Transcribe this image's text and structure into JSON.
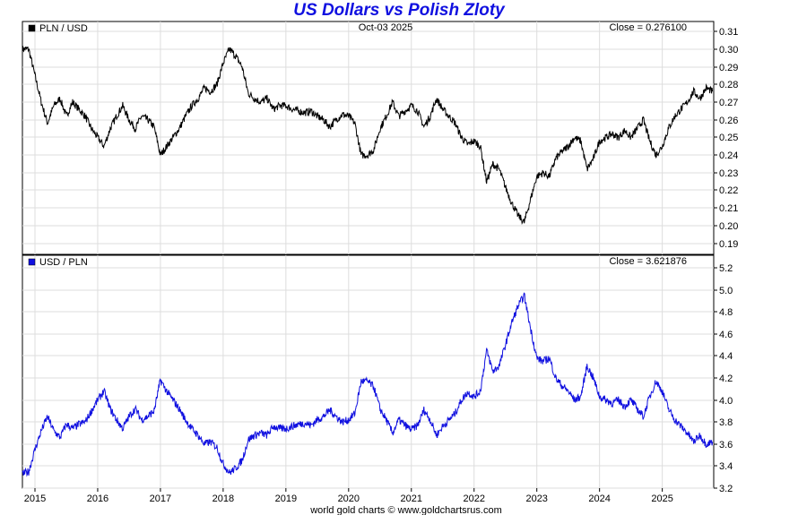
{
  "chart_data": {
    "type": "line",
    "title": "US Dollars vs Polish Zloty",
    "date_label": "Oct-03  2025",
    "footer": "world gold charts © www.goldchartsrus.com",
    "x_ticks": [
      "2015",
      "2016",
      "2017",
      "2018",
      "2019",
      "2020",
      "2021",
      "2022",
      "2023",
      "2024",
      "2025"
    ],
    "x_range": [
      2014.8,
      2025.82
    ],
    "grid": true,
    "panels": [
      {
        "name": "PLN / USD",
        "close_label": "Close = 0.276100",
        "color": "#000000",
        "ylim": [
          0.185,
          0.315
        ],
        "y_ticks": [
          "0.31",
          "0.30",
          "0.29",
          "0.28",
          "0.27",
          "0.26",
          "0.25",
          "0.24",
          "0.23",
          "0.22",
          "0.21",
          "0.20",
          "0.19"
        ],
        "points": [
          [
            2014.8,
            0.3
          ],
          [
            2014.9,
            0.3
          ],
          [
            2015.0,
            0.285
          ],
          [
            2015.1,
            0.27
          ],
          [
            2015.2,
            0.258
          ],
          [
            2015.3,
            0.268
          ],
          [
            2015.4,
            0.272
          ],
          [
            2015.5,
            0.262
          ],
          [
            2015.6,
            0.27
          ],
          [
            2015.7,
            0.266
          ],
          [
            2015.8,
            0.262
          ],
          [
            2015.9,
            0.255
          ],
          [
            2016.0,
            0.25
          ],
          [
            2016.1,
            0.245
          ],
          [
            2016.2,
            0.255
          ],
          [
            2016.3,
            0.262
          ],
          [
            2016.4,
            0.268
          ],
          [
            2016.5,
            0.26
          ],
          [
            2016.6,
            0.255
          ],
          [
            2016.7,
            0.262
          ],
          [
            2016.8,
            0.26
          ],
          [
            2016.9,
            0.256
          ],
          [
            2017.0,
            0.24
          ],
          [
            2017.1,
            0.245
          ],
          [
            2017.2,
            0.25
          ],
          [
            2017.3,
            0.255
          ],
          [
            2017.4,
            0.262
          ],
          [
            2017.5,
            0.268
          ],
          [
            2017.6,
            0.272
          ],
          [
            2017.7,
            0.278
          ],
          [
            2017.8,
            0.276
          ],
          [
            2017.9,
            0.28
          ],
          [
            2018.0,
            0.292
          ],
          [
            2018.1,
            0.3
          ],
          [
            2018.2,
            0.296
          ],
          [
            2018.3,
            0.29
          ],
          [
            2018.4,
            0.275
          ],
          [
            2018.5,
            0.272
          ],
          [
            2018.6,
            0.27
          ],
          [
            2018.7,
            0.272
          ],
          [
            2018.8,
            0.266
          ],
          [
            2018.9,
            0.268
          ],
          [
            2019.0,
            0.268
          ],
          [
            2019.1,
            0.266
          ],
          [
            2019.2,
            0.265
          ],
          [
            2019.3,
            0.264
          ],
          [
            2019.4,
            0.265
          ],
          [
            2019.5,
            0.262
          ],
          [
            2019.6,
            0.26
          ],
          [
            2019.7,
            0.256
          ],
          [
            2019.8,
            0.26
          ],
          [
            2019.9,
            0.263
          ],
          [
            2020.0,
            0.262
          ],
          [
            2020.1,
            0.258
          ],
          [
            2020.2,
            0.24
          ],
          [
            2020.3,
            0.24
          ],
          [
            2020.4,
            0.243
          ],
          [
            2020.5,
            0.255
          ],
          [
            2020.6,
            0.262
          ],
          [
            2020.7,
            0.27
          ],
          [
            2020.8,
            0.262
          ],
          [
            2020.9,
            0.265
          ],
          [
            2021.0,
            0.268
          ],
          [
            2021.1,
            0.265
          ],
          [
            2021.2,
            0.256
          ],
          [
            2021.3,
            0.262
          ],
          [
            2021.4,
            0.272
          ],
          [
            2021.5,
            0.266
          ],
          [
            2021.6,
            0.262
          ],
          [
            2021.7,
            0.258
          ],
          [
            2021.8,
            0.25
          ],
          [
            2021.9,
            0.246
          ],
          [
            2022.0,
            0.248
          ],
          [
            2022.1,
            0.245
          ],
          [
            2022.2,
            0.225
          ],
          [
            2022.3,
            0.235
          ],
          [
            2022.4,
            0.232
          ],
          [
            2022.5,
            0.222
          ],
          [
            2022.6,
            0.213
          ],
          [
            2022.7,
            0.206
          ],
          [
            2022.8,
            0.202
          ],
          [
            2022.9,
            0.215
          ],
          [
            2023.0,
            0.228
          ],
          [
            2023.1,
            0.23
          ],
          [
            2023.2,
            0.228
          ],
          [
            2023.3,
            0.238
          ],
          [
            2023.4,
            0.242
          ],
          [
            2023.5,
            0.245
          ],
          [
            2023.6,
            0.25
          ],
          [
            2023.7,
            0.248
          ],
          [
            2023.8,
            0.232
          ],
          [
            2023.9,
            0.238
          ],
          [
            2024.0,
            0.248
          ],
          [
            2024.1,
            0.25
          ],
          [
            2024.2,
            0.252
          ],
          [
            2024.3,
            0.25
          ],
          [
            2024.4,
            0.254
          ],
          [
            2024.5,
            0.25
          ],
          [
            2024.6,
            0.255
          ],
          [
            2024.7,
            0.26
          ],
          [
            2024.8,
            0.248
          ],
          [
            2024.9,
            0.24
          ],
          [
            2025.0,
            0.245
          ],
          [
            2025.1,
            0.255
          ],
          [
            2025.2,
            0.262
          ],
          [
            2025.3,
            0.266
          ],
          [
            2025.4,
            0.27
          ],
          [
            2025.5,
            0.276
          ],
          [
            2025.6,
            0.272
          ],
          [
            2025.7,
            0.278
          ],
          [
            2025.8,
            0.276
          ]
        ]
      },
      {
        "name": "USD / PLN",
        "close_label": "Close = 3.621876",
        "color": "#1010e0",
        "ylim": [
          3.2,
          5.2
        ],
        "y_ticks": [
          "5.2",
          "5.0",
          "4.8",
          "4.6",
          "4.4",
          "4.2",
          "4.0",
          "3.8",
          "3.6",
          "3.4",
          "3.2"
        ],
        "points": [
          [
            2014.8,
            3.33
          ],
          [
            2014.9,
            3.35
          ],
          [
            2015.0,
            3.55
          ],
          [
            2015.1,
            3.72
          ],
          [
            2015.2,
            3.85
          ],
          [
            2015.3,
            3.72
          ],
          [
            2015.4,
            3.66
          ],
          [
            2015.5,
            3.78
          ],
          [
            2015.6,
            3.74
          ],
          [
            2015.7,
            3.78
          ],
          [
            2015.8,
            3.8
          ],
          [
            2015.9,
            3.9
          ],
          [
            2016.0,
            4.0
          ],
          [
            2016.1,
            4.08
          ],
          [
            2016.2,
            3.92
          ],
          [
            2016.3,
            3.82
          ],
          [
            2016.4,
            3.74
          ],
          [
            2016.5,
            3.85
          ],
          [
            2016.6,
            3.92
          ],
          [
            2016.7,
            3.82
          ],
          [
            2016.8,
            3.85
          ],
          [
            2016.9,
            3.9
          ],
          [
            2017.0,
            4.18
          ],
          [
            2017.1,
            4.08
          ],
          [
            2017.2,
            4.0
          ],
          [
            2017.3,
            3.92
          ],
          [
            2017.4,
            3.82
          ],
          [
            2017.5,
            3.74
          ],
          [
            2017.6,
            3.68
          ],
          [
            2017.7,
            3.6
          ],
          [
            2017.8,
            3.62
          ],
          [
            2017.9,
            3.57
          ],
          [
            2018.0,
            3.42
          ],
          [
            2018.1,
            3.34
          ],
          [
            2018.2,
            3.38
          ],
          [
            2018.3,
            3.45
          ],
          [
            2018.4,
            3.64
          ],
          [
            2018.5,
            3.68
          ],
          [
            2018.6,
            3.7
          ],
          [
            2018.7,
            3.68
          ],
          [
            2018.8,
            3.76
          ],
          [
            2018.9,
            3.74
          ],
          [
            2019.0,
            3.74
          ],
          [
            2019.1,
            3.76
          ],
          [
            2019.2,
            3.78
          ],
          [
            2019.3,
            3.79
          ],
          [
            2019.4,
            3.77
          ],
          [
            2019.5,
            3.82
          ],
          [
            2019.6,
            3.85
          ],
          [
            2019.7,
            3.91
          ],
          [
            2019.8,
            3.85
          ],
          [
            2019.9,
            3.8
          ],
          [
            2020.0,
            3.82
          ],
          [
            2020.1,
            3.88
          ],
          [
            2020.2,
            4.17
          ],
          [
            2020.3,
            4.17
          ],
          [
            2020.4,
            4.12
          ],
          [
            2020.5,
            3.92
          ],
          [
            2020.6,
            3.82
          ],
          [
            2020.7,
            3.7
          ],
          [
            2020.8,
            3.82
          ],
          [
            2020.9,
            3.77
          ],
          [
            2021.0,
            3.73
          ],
          [
            2021.1,
            3.77
          ],
          [
            2021.2,
            3.91
          ],
          [
            2021.3,
            3.82
          ],
          [
            2021.4,
            3.68
          ],
          [
            2021.5,
            3.76
          ],
          [
            2021.6,
            3.82
          ],
          [
            2021.7,
            3.88
          ],
          [
            2021.8,
            4.0
          ],
          [
            2021.9,
            4.07
          ],
          [
            2022.0,
            4.03
          ],
          [
            2022.1,
            4.08
          ],
          [
            2022.2,
            4.45
          ],
          [
            2022.3,
            4.26
          ],
          [
            2022.4,
            4.31
          ],
          [
            2022.5,
            4.5
          ],
          [
            2022.6,
            4.7
          ],
          [
            2022.7,
            4.85
          ],
          [
            2022.8,
            4.95
          ],
          [
            2022.9,
            4.65
          ],
          [
            2023.0,
            4.38
          ],
          [
            2023.1,
            4.35
          ],
          [
            2023.2,
            4.38
          ],
          [
            2023.3,
            4.2
          ],
          [
            2023.4,
            4.13
          ],
          [
            2023.5,
            4.08
          ],
          [
            2023.6,
            4.0
          ],
          [
            2023.7,
            4.03
          ],
          [
            2023.8,
            4.31
          ],
          [
            2023.9,
            4.2
          ],
          [
            2024.0,
            4.03
          ],
          [
            2024.1,
            4.0
          ],
          [
            2024.2,
            3.97
          ],
          [
            2024.3,
            4.0
          ],
          [
            2024.4,
            3.94
          ],
          [
            2024.5,
            4.0
          ],
          [
            2024.6,
            3.92
          ],
          [
            2024.7,
            3.85
          ],
          [
            2024.8,
            4.03
          ],
          [
            2024.9,
            4.17
          ],
          [
            2025.0,
            4.08
          ],
          [
            2025.1,
            3.92
          ],
          [
            2025.2,
            3.82
          ],
          [
            2025.3,
            3.76
          ],
          [
            2025.4,
            3.7
          ],
          [
            2025.5,
            3.62
          ],
          [
            2025.6,
            3.68
          ],
          [
            2025.7,
            3.6
          ],
          [
            2025.8,
            3.62
          ]
        ]
      }
    ]
  }
}
